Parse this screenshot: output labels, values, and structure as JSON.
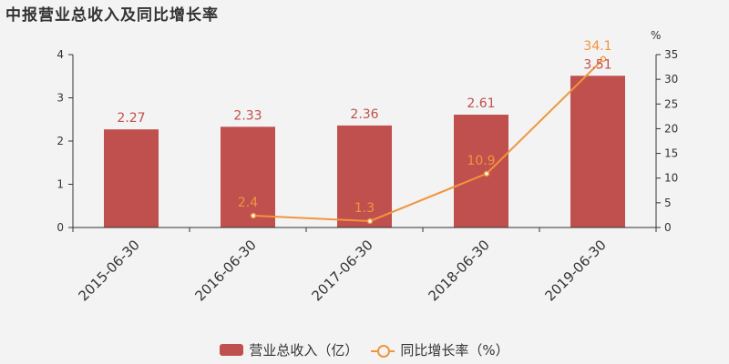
{
  "chart_data": {
    "type": "bar",
    "title": "中报营业总收入及同比增长率",
    "categories": [
      "2015-06-30",
      "2016-06-30",
      "2017-06-30",
      "2018-06-30",
      "2019-06-30"
    ],
    "series": [
      {
        "name": "营业总收入（亿）",
        "type": "bar",
        "axis": "left",
        "values": [
          2.27,
          2.33,
          2.36,
          2.61,
          3.51
        ],
        "labels": [
          "2.27",
          "2.33",
          "2.36",
          "2.61",
          "3.51"
        ]
      },
      {
        "name": "同比增长率（%）",
        "type": "line",
        "axis": "right",
        "values": [
          null,
          2.4,
          1.3,
          10.9,
          34.1
        ],
        "labels": [
          "",
          "2.4",
          "1.3",
          "10.9",
          "34.1"
        ]
      }
    ],
    "y_left": {
      "ylim": [
        0,
        4
      ],
      "ticks": [
        "0",
        "1",
        "2",
        "3",
        "4"
      ]
    },
    "y_right": {
      "ylim": [
        0,
        35
      ],
      "ticks": [
        "0",
        "5",
        "10",
        "15",
        "20",
        "25",
        "30",
        "35"
      ],
      "unit": "%"
    },
    "colors": {
      "bar": "#c0504d",
      "line": "#f0953d"
    },
    "legend_position": "bottom-center"
  }
}
